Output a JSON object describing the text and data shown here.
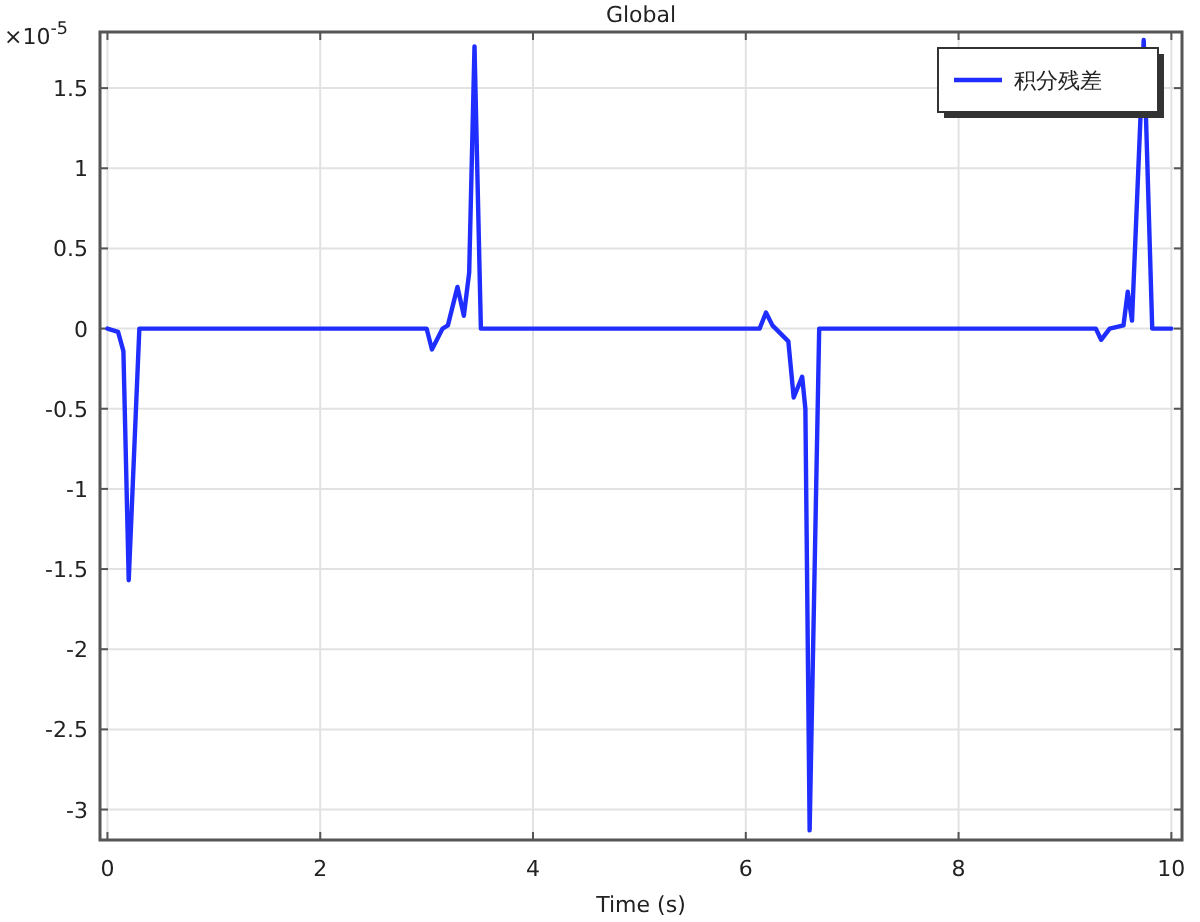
{
  "chart_data": {
    "type": "line",
    "title": "Global",
    "xlabel": "Time (s)",
    "annotations": [
      "×10$^{-5}$"
    ],
    "xlim": [
      -0.07,
      10.1
    ],
    "ylim": [
      -3.19,
      1.85
    ],
    "xticks": [
      0,
      2,
      4,
      6,
      8,
      10
    ],
    "yticks": [
      -3,
      -2.5,
      -2,
      -1.5,
      -1,
      -0.5,
      0,
      0.5,
      1,
      1.5
    ],
    "grid": true,
    "legend": "top right",
    "line_style": "solid",
    "marker": "none",
    "series": [
      {
        "name": "积分残差",
        "color": "#1f2eff",
        "x": [
          0,
          0.1,
          0.15,
          0.2,
          0.3,
          3.0,
          3.05,
          3.15,
          3.2,
          3.29,
          3.35,
          3.4,
          3.45,
          3.51,
          6.13,
          6.19,
          6.25,
          6.4,
          6.45,
          6.53,
          6.56,
          6.6,
          6.69,
          9.29,
          9.34,
          9.42,
          9.55,
          9.59,
          9.63,
          9.74,
          9.82,
          10
        ],
        "values": [
          0,
          -0.02,
          -0.14,
          -1.57,
          0,
          0,
          -0.13,
          0,
          0.02,
          0.26,
          0.08,
          0.35,
          1.76,
          0,
          0,
          0.1,
          0.02,
          -0.08,
          -0.43,
          -0.3,
          -0.5,
          -3.13,
          0,
          0,
          -0.07,
          0,
          0.02,
          0.23,
          0.05,
          1.8,
          0,
          0
        ]
      }
    ]
  }
}
